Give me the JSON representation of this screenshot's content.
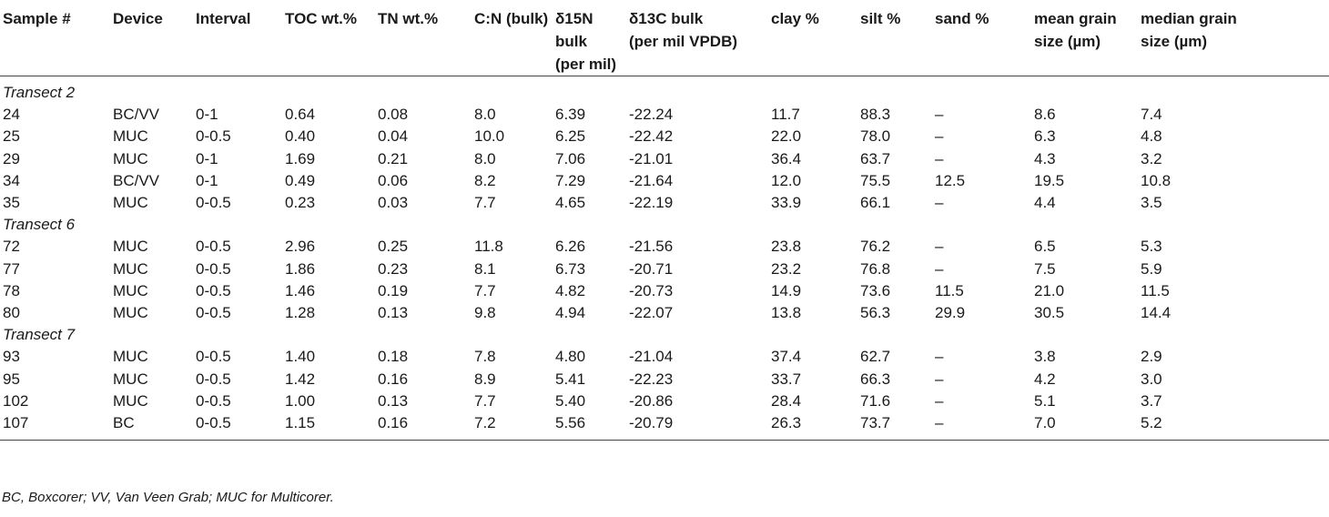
{
  "table": {
    "headers": [
      [
        "Sample #"
      ],
      [
        "Device"
      ],
      [
        "Interval"
      ],
      [
        "TOC wt.%"
      ],
      [
        "TN wt.%"
      ],
      [
        "C:N (bulk)"
      ],
      [
        "δ15N bulk",
        "(per mil)"
      ],
      [
        "δ13C bulk",
        "(per mil VPDB)"
      ],
      [
        "clay %"
      ],
      [
        "silt %"
      ],
      [
        "sand %"
      ],
      [
        "mean grain",
        "size (µm)"
      ],
      [
        "median grain",
        "size (µm)"
      ]
    ],
    "sections": [
      {
        "title": "Transect 2",
        "rows": [
          [
            "24",
            "BC/VV",
            "0-1",
            "0.64",
            "0.08",
            "8.0",
            "6.39",
            "-22.24",
            "11.7",
            "88.3",
            "–",
            "8.6",
            "7.4"
          ],
          [
            "25",
            "MUC",
            "0-0.5",
            "0.40",
            "0.04",
            "10.0",
            "6.25",
            "-22.42",
            "22.0",
            "78.0",
            "–",
            "6.3",
            "4.8"
          ],
          [
            "29",
            "MUC",
            "0-1",
            "1.69",
            "0.21",
            "8.0",
            "7.06",
            "-21.01",
            "36.4",
            "63.7",
            "–",
            "4.3",
            "3.2"
          ],
          [
            "34",
            "BC/VV",
            "0-1",
            "0.49",
            "0.06",
            "8.2",
            "7.29",
            "-21.64",
            "12.0",
            "75.5",
            "12.5",
            "19.5",
            "10.8"
          ],
          [
            "35",
            "MUC",
            "0-0.5",
            "0.23",
            "0.03",
            "7.7",
            "4.65",
            "-22.19",
            "33.9",
            "66.1",
            "–",
            "4.4",
            "3.5"
          ]
        ]
      },
      {
        "title": "Transect 6",
        "rows": [
          [
            "72",
            "MUC",
            "0-0.5",
            "2.96",
            "0.25",
            "11.8",
            "6.26",
            "-21.56",
            "23.8",
            "76.2",
            "–",
            "6.5",
            "5.3"
          ],
          [
            "77",
            "MUC",
            "0-0.5",
            "1.86",
            "0.23",
            "8.1",
            "6.73",
            "-20.71",
            "23.2",
            "76.8",
            "–",
            "7.5",
            "5.9"
          ],
          [
            "78",
            "MUC",
            "0-0.5",
            "1.46",
            "0.19",
            "7.7",
            "4.82",
            "-20.73",
            "14.9",
            "73.6",
            "11.5",
            "21.0",
            "11.5"
          ],
          [
            "80",
            "MUC",
            "0-0.5",
            "1.28",
            "0.13",
            "9.8",
            "4.94",
            "-22.07",
            "13.8",
            "56.3",
            "29.9",
            "30.5",
            "14.4"
          ]
        ]
      },
      {
        "title": "Transect 7",
        "rows": [
          [
            "93",
            "MUC",
            "0-0.5",
            "1.40",
            "0.18",
            "7.8",
            "4.80",
            "-21.04",
            "37.4",
            "62.7",
            "–",
            "3.8",
            "2.9"
          ],
          [
            "95",
            "MUC",
            "0-0.5",
            "1.42",
            "0.16",
            "8.9",
            "5.41",
            "-22.23",
            "33.7",
            "66.3",
            "–",
            "4.2",
            "3.0"
          ],
          [
            "102",
            "MUC",
            "0-0.5",
            "1.00",
            "0.13",
            "7.7",
            "5.40",
            "-20.86",
            "28.4",
            "71.6",
            "–",
            "5.1",
            "3.7"
          ],
          [
            "107",
            "BC",
            "0-0.5",
            "1.15",
            "0.16",
            "7.2",
            "5.56",
            "-20.79",
            "26.3",
            "73.7",
            "–",
            "7.0",
            "5.2"
          ]
        ]
      }
    ]
  },
  "footnote": "BC, Boxcorer; VV, Van Veen Grab; MUC for Multicorer."
}
